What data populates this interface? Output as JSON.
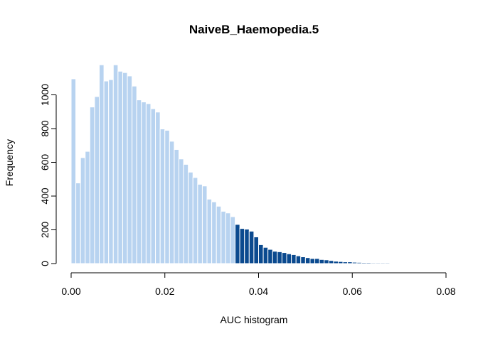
{
  "chart_data": {
    "type": "bar",
    "title": "NaiveB_Haemopedia.5",
    "xlabel": "AUC histogram",
    "ylabel": "Frequency",
    "xlim": [
      0,
      0.08
    ],
    "ylim": [
      0,
      1200
    ],
    "xticks": [
      0,
      0.02,
      0.04,
      0.06,
      0.08
    ],
    "xtick_labels": [
      "0.00",
      "0.02",
      "0.04",
      "0.06",
      "0.08"
    ],
    "yticks": [
      0,
      200,
      400,
      600,
      800,
      1000
    ],
    "ytick_labels": [
      "0",
      "200",
      "400",
      "600",
      "800",
      "1000"
    ],
    "bin_start": 0,
    "bin_width": 0.001,
    "threshold": 0.035,
    "colors": {
      "below_threshold": "#b8d3f0",
      "above_threshold": "#0b4a8f",
      "bar_border": "#ffffff"
    },
    "values": [
      1095,
      478,
      628,
      665,
      928,
      990,
      1178,
      1082,
      1090,
      1178,
      1140,
      1132,
      1112,
      1052,
      970,
      958,
      948,
      918,
      898,
      798,
      790,
      725,
      676,
      620,
      588,
      542,
      510,
      470,
      460,
      382,
      366,
      340,
      310,
      300,
      278,
      232,
      208,
      204,
      192,
      158,
      112,
      96,
      84,
      73,
      70,
      65,
      58,
      53,
      46,
      40,
      35,
      30,
      30,
      24,
      22,
      18,
      14,
      12,
      10,
      10,
      8,
      7,
      6,
      6,
      5,
      5,
      5,
      5,
      4,
      4,
      4,
      3,
      3,
      2,
      2,
      2,
      2,
      2
    ]
  }
}
